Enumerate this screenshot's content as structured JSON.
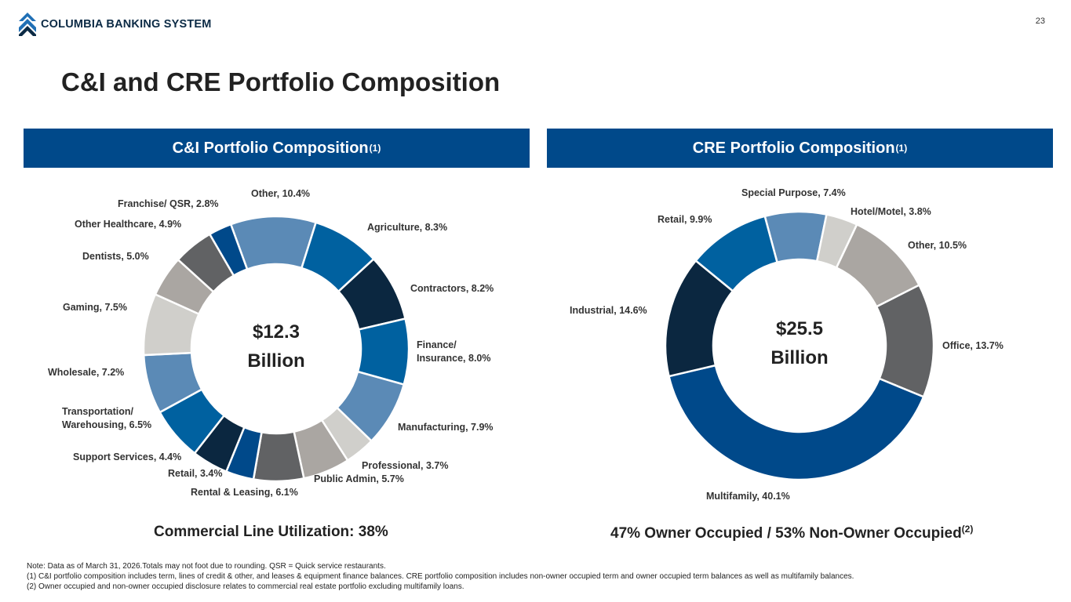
{
  "header": {
    "logo_text": "COLUMBIA BANKING SYSTEM",
    "page_number": "23",
    "title": "C&I and CRE Portfolio Composition"
  },
  "banners": {
    "left": "C&I Portfolio Composition",
    "right": "CRE Portfolio Composition",
    "footnote_ref": "(1)"
  },
  "chart_data": [
    {
      "type": "pie",
      "variant": "donut",
      "center_label": [
        "$12.3",
        "Billion"
      ],
      "slices": [
        {
          "label": "Other, 10.4%",
          "value": 10.4,
          "color": "#5b8ab6"
        },
        {
          "label": "Agriculture, 8.3%",
          "value": 8.3,
          "color": "#0061a0"
        },
        {
          "label": "Contractors, 8.2%",
          "value": 8.2,
          "color": "#0b2740"
        },
        {
          "label": "Finance/ Insurance, 8.0%",
          "value": 8.0,
          "color": "#0061a0"
        },
        {
          "label": "Manufacturing, 7.9%",
          "value": 7.9,
          "color": "#5b8ab6"
        },
        {
          "label": "Professional, 3.7%",
          "value": 3.7,
          "color": "#d0cfcb"
        },
        {
          "label": "Public Admin, 5.7%",
          "value": 5.7,
          "color": "#aaa6a2"
        },
        {
          "label": "Rental & Leasing, 6.1%",
          "value": 6.1,
          "color": "#616264"
        },
        {
          "label": "Retail, 3.4%",
          "value": 3.4,
          "color": "#00498a"
        },
        {
          "label": "Support Services, 4.4%",
          "value": 4.4,
          "color": "#0b2740"
        },
        {
          "label": "Transportation/ Warehousing, 6.5%",
          "value": 6.5,
          "color": "#0061a0"
        },
        {
          "label": "Wholesale, 7.2%",
          "value": 7.2,
          "color": "#5b8ab6"
        },
        {
          "label": "Gaming, 7.5%",
          "value": 7.5,
          "color": "#d0cfcb"
        },
        {
          "label": "Dentists, 5.0%",
          "value": 5.0,
          "color": "#aaa6a2"
        },
        {
          "label": "Other Healthcare, 4.9%",
          "value": 4.9,
          "color": "#616264"
        },
        {
          "label": "Franchise/ QSR, 2.8%",
          "value": 2.8,
          "color": "#00498a"
        }
      ]
    },
    {
      "type": "pie",
      "variant": "donut",
      "center_label": [
        "$25.5",
        "Billion"
      ],
      "slices": [
        {
          "label": "Special Purpose, 7.4%",
          "value": 7.4,
          "color": "#5b8ab6"
        },
        {
          "label": "Hotel/Motel, 3.8%",
          "value": 3.8,
          "color": "#d0cfcb"
        },
        {
          "label": "Other, 10.5%",
          "value": 10.5,
          "color": "#aaa6a2"
        },
        {
          "label": "Office, 13.7%",
          "value": 13.7,
          "color": "#616264"
        },
        {
          "label": "Multifamily, 40.1%",
          "value": 40.1,
          "color": "#00498a"
        },
        {
          "label": "Industrial, 14.6%",
          "value": 14.6,
          "color": "#0b2740"
        },
        {
          "label": "Retail, 9.9%",
          "value": 9.9,
          "color": "#0061a0"
        }
      ]
    }
  ],
  "stats": {
    "left": "Commercial Line Utilization: 38%",
    "right": "47% Owner Occupied / 53% Non-Owner Occupied",
    "right_ref": "(2)"
  },
  "notes": [
    "Note: Data as of March 31, 2026.Totals may not foot due to rounding. QSR = Quick service restaurants.",
    "(1)  C&I portfolio composition includes term, lines of credit & other, and leases & equipment finance balances. CRE portfolio composition includes non-owner occupied term and owner occupied term balances as well as multifamily balances.",
    "(2)  Owner occupied and non-owner occupied disclosure relates to commercial real estate portfolio excluding multifamily loans."
  ]
}
